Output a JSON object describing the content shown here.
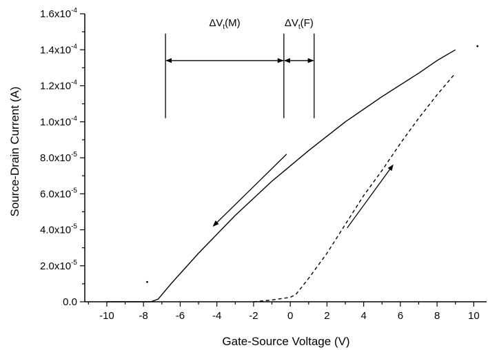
{
  "chart_data": {
    "type": "line",
    "title": "",
    "xlabel": "Gate-Source Voltage (V)",
    "ylabel": "Source-Drain Current (A)",
    "xlim": [
      -11.2,
      10.7
    ],
    "ylim": [
      0,
      0.00016
    ],
    "x_ticks": [
      -10,
      -8,
      -6,
      -4,
      -2,
      0,
      2,
      4,
      6,
      8,
      10
    ],
    "x_tick_labels": [
      "-10",
      "-8",
      "-6",
      "-4",
      "-2",
      "0",
      "2",
      "4",
      "6",
      "8",
      "10"
    ],
    "y_ticks": [
      0,
      2e-05,
      4e-05,
      6e-05,
      8e-05,
      0.0001,
      0.00012,
      0.00014,
      0.00016
    ],
    "y_tick_labels": [
      {
        "mant": "0.0",
        "exp": ""
      },
      {
        "mant": "2.0x10",
        "exp": "-5"
      },
      {
        "mant": "4.0x10",
        "exp": "-5"
      },
      {
        "mant": "6.0x10",
        "exp": "-5"
      },
      {
        "mant": "8.0x10",
        "exp": "-5"
      },
      {
        "mant": "1.0x10",
        "exp": "-4"
      },
      {
        "mant": "1.2x10",
        "exp": "-4"
      },
      {
        "mant": "1.4x10",
        "exp": "-4"
      },
      {
        "mant": "1.6x10",
        "exp": "-4"
      }
    ],
    "grid": false,
    "series": [
      {
        "style": "solid",
        "color": "#000000",
        "x": [
          -10,
          -8,
          -7.6,
          -7.2,
          -6.5,
          -5,
          -3,
          -1,
          1,
          3,
          5,
          7,
          8,
          9
        ],
        "y": [
          0,
          0,
          0,
          1.5e-06,
          1e-05,
          2.7e-05,
          4.8e-05,
          6.7e-05,
          8.4e-05,
          0.0001,
          0.000114,
          0.000127,
          0.000134,
          0.00014
        ]
      },
      {
        "style": "dashed",
        "color": "#000000",
        "x": [
          -2,
          -1,
          0,
          0.3,
          1,
          2,
          3,
          4,
          5,
          6,
          7,
          8,
          9
        ],
        "y": [
          0,
          1e-06,
          2.5e-06,
          4e-06,
          1.3e-05,
          2.7e-05,
          4.3e-05,
          5.9e-05,
          7.3e-05,
          8.8e-05,
          0.000102,
          0.000115,
          0.000127
        ]
      }
    ],
    "arrows": [
      {
        "from": [
          -0.2,
          8.2e-05
        ],
        "to": [
          -4.2,
          4.2e-05
        ]
      },
      {
        "from": [
          3.1,
          4.1e-05
        ],
        "to": [
          5.6,
          7.6e-05
        ]
      }
    ],
    "annotations": [
      {
        "label_main": "ΔV",
        "label_sub": "t",
        "label_rest": "(M)",
        "x1": -6.8,
        "x2": -0.35,
        "arrow_y": 0.000134,
        "line_top": 0.000149,
        "line_bottom": 0.000102
      },
      {
        "label_main": "ΔV",
        "label_sub": "t",
        "label_rest": "(F)",
        "x1": -0.35,
        "x2": 1.3,
        "arrow_y": 0.000134,
        "line_top": 0.000149,
        "line_bottom": 0.000102
      }
    ],
    "stray_dots": [
      {
        "x": -7.8,
        "y": 1.1e-05
      },
      {
        "x": 10.2,
        "y": 0.000142
      }
    ]
  }
}
